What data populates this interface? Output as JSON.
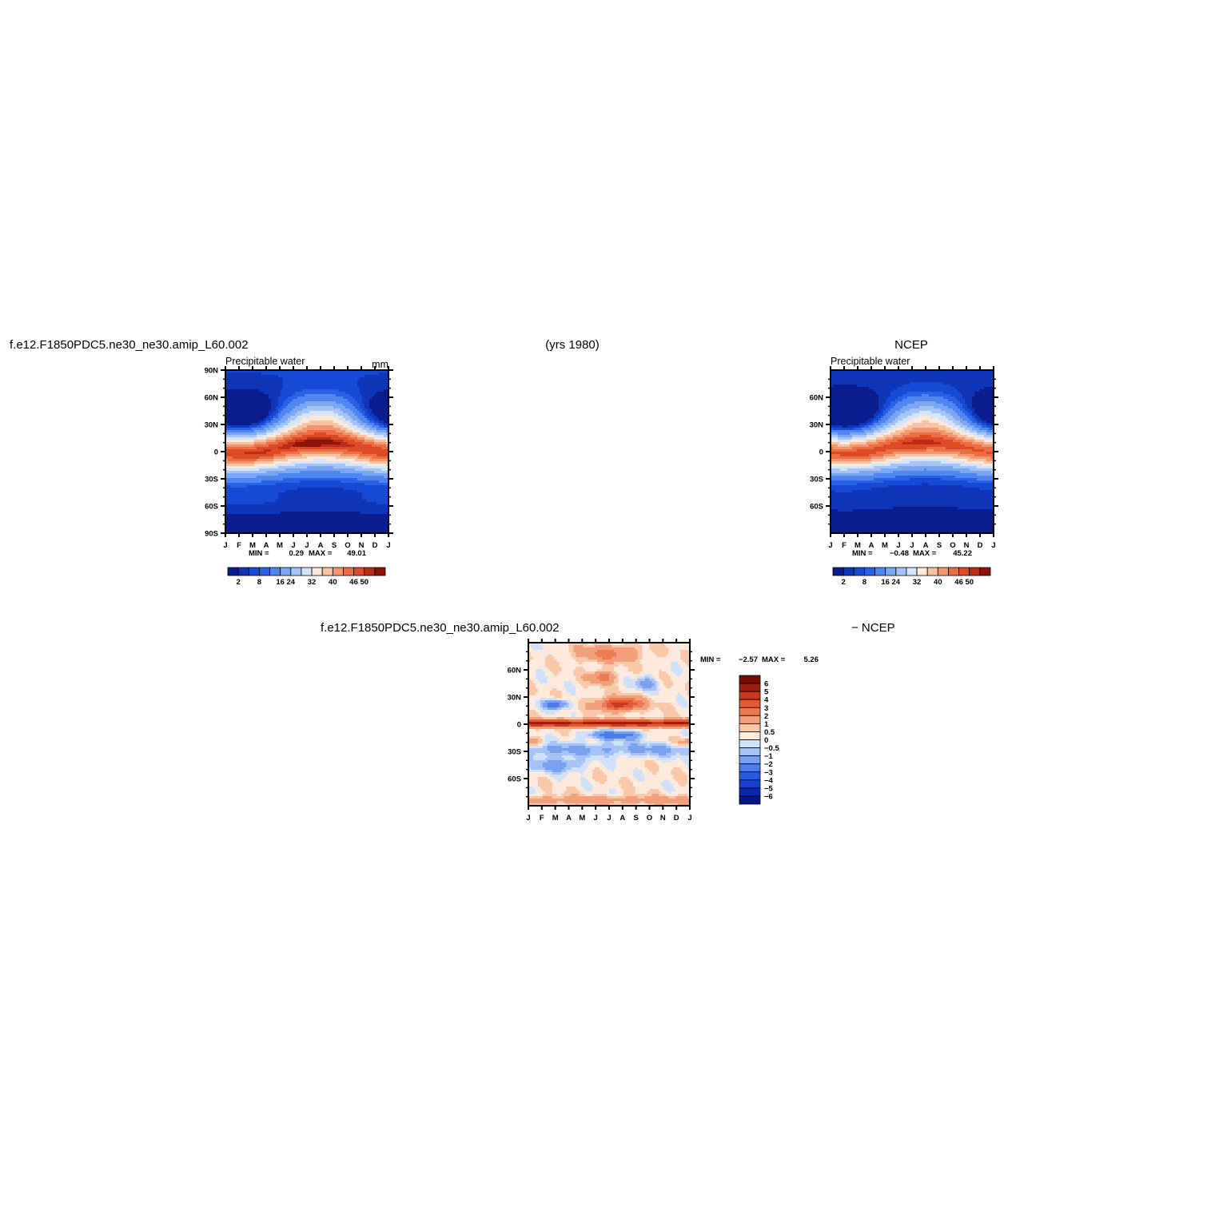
{
  "header": {
    "case_name": "f.e12.F1850PDC5.ne30_ne30.amip_L60.002",
    "years": "(yrs 1980)",
    "obs_name": "NCEP"
  },
  "colors": {
    "seq": [
      "#0a1d8e",
      "#0f35b8",
      "#1849d4",
      "#2a62e6",
      "#4f86ef",
      "#7aa6f4",
      "#a6c4f8",
      "#d3e4fb",
      "#fbeadc",
      "#f8c3a3",
      "#f39770",
      "#ec6e45",
      "#dc4a26",
      "#bd2c16",
      "#8f1408"
    ],
    "diff": [
      "#07148a",
      "#0b28ad",
      "#1440cf",
      "#2a5ae2",
      "#4c7ce9",
      "#7aa1ef",
      "#a6c2f6",
      "#d0e2fa",
      "#fcebdd",
      "#f8c8a8",
      "#f2a07b",
      "#ec7a52",
      "#e45a34",
      "#c63a20",
      "#9f1d0e",
      "#7a0c06"
    ]
  },
  "chart_data": [
    {
      "type": "heatmap",
      "panel": "model",
      "title": "Precipitable water",
      "units": "mm",
      "x_ticks": [
        "J",
        "F",
        "M",
        "A",
        "M",
        "J",
        "J",
        "A",
        "S",
        "O",
        "N",
        "D",
        "J"
      ],
      "y_ticks": [
        "90N",
        "60N",
        "30N",
        "0",
        "30S",
        "60S",
        "90S"
      ],
      "ylim": [
        -90,
        90
      ],
      "stats": {
        "min_label": "MIN =",
        "min": "0.29",
        "max_label": "MAX =",
        "max": "49.01"
      },
      "colorbar_labels": [
        "2",
        "8",
        "16",
        "24",
        "32",
        "40",
        "46",
        "50"
      ],
      "levels": [
        2,
        4,
        6,
        8,
        12,
        16,
        20,
        24,
        28,
        32,
        36,
        40,
        44,
        46,
        48,
        50
      ],
      "field": {
        "equator_max": 42,
        "pole_north_min": 3,
        "pole_south_min": 1.2,
        "peak_lat": {
          "Jan": -2,
          "Aug": 10
        }
      }
    },
    {
      "type": "heatmap",
      "panel": "obs",
      "title": "Precipitable water",
      "x_ticks": [
        "J",
        "F",
        "M",
        "A",
        "M",
        "J",
        "J",
        "A",
        "S",
        "O",
        "N",
        "D",
        "J"
      ],
      "y_ticks": [
        "60N",
        "30N",
        "0",
        "30S",
        "60S"
      ],
      "ylim": [
        -90,
        90
      ],
      "stats": {
        "min_label": "MIN =",
        "min": "−0.48",
        "max_label": "MAX =",
        "max": "45.22"
      },
      "colorbar_labels": [
        "2",
        "8",
        "16",
        "24",
        "32",
        "40",
        "46",
        "50"
      ],
      "levels": [
        2,
        4,
        6,
        8,
        12,
        16,
        20,
        24,
        28,
        32,
        36,
        40,
        44,
        46,
        48,
        50
      ],
      "field": {
        "equator_max": 40,
        "pole_north_min": 3,
        "pole_south_min": 0.5,
        "peak_lat": {
          "Jan": -2,
          "Aug": 10
        }
      }
    },
    {
      "type": "heatmap",
      "panel": "difference",
      "title_left": "f.e12.F1850PDC5.ne30_ne30.amip_L60.002",
      "title_right": "− NCEP",
      "x_ticks": [
        "J",
        "F",
        "M",
        "A",
        "M",
        "J",
        "J",
        "A",
        "S",
        "O",
        "N",
        "D",
        "J"
      ],
      "y_ticks": [
        "60N",
        "30N",
        "0",
        "30S",
        "60S"
      ],
      "ylim": [
        -90,
        90
      ],
      "stats": {
        "min_label": "MIN =",
        "min": "−2.57",
        "max_label": "MAX =",
        "max": "5.26"
      },
      "colorbar_labels": [
        "6",
        "5",
        "4",
        "3",
        "2",
        "1",
        "0.5",
        "0",
        "−0.5",
        "−1",
        "−2",
        "−3",
        "−4",
        "−5",
        "−6"
      ],
      "levels": [
        -6,
        -5,
        -4,
        -3,
        -2,
        -1,
        -0.5,
        0,
        0.5,
        1,
        2,
        3,
        4,
        5,
        6
      ]
    }
  ]
}
